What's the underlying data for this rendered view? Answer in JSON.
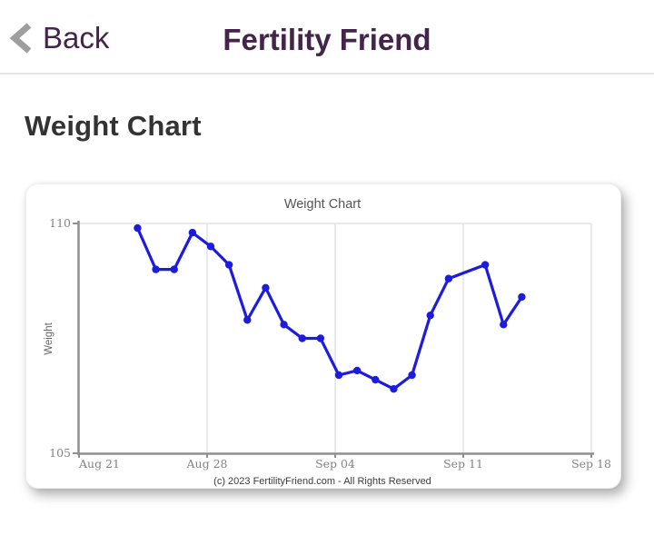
{
  "header": {
    "back_label": "Back",
    "title": "Fertility Friend"
  },
  "page": {
    "heading": "Weight Chart"
  },
  "colors": {
    "accent_purple": "#44254a",
    "chevron_gray": "#9e9e9e",
    "axis_gray": "#8f8f8f",
    "grid_gray": "#e2e2e2",
    "tick_text_gray": "#848484",
    "line_blue": "#1c1ce0"
  },
  "chart_data": {
    "type": "line",
    "title": "Weight Chart",
    "ylabel": "Weight",
    "xlabel": "",
    "ylim": [
      105,
      110
    ],
    "yticks": [
      110,
      105
    ],
    "xticks": [
      "Aug 21",
      "Aug 28",
      "Sep 04",
      "Sep 11",
      "Sep 18"
    ],
    "grid": "light vertical weekly gridlines plus top boundary line",
    "legend": "none",
    "line_color": "#1c1ce0",
    "footer": "(c) 2023 FertilityFriend.com - All Rights Reserved",
    "series": [
      {
        "name": "Weight",
        "points": [
          {
            "date": "Aug 24",
            "day": 3,
            "value": 109.9
          },
          {
            "date": "Aug 25",
            "day": 4,
            "value": 109.0
          },
          {
            "date": "Aug 26",
            "day": 5,
            "value": 109.0
          },
          {
            "date": "Aug 27",
            "day": 6,
            "value": 109.8
          },
          {
            "date": "Aug 28",
            "day": 7,
            "value": 109.5
          },
          {
            "date": "Aug 29",
            "day": 8,
            "value": 109.1
          },
          {
            "date": "Aug 30",
            "day": 9,
            "value": 107.9
          },
          {
            "date": "Aug 31",
            "day": 10,
            "value": 108.6
          },
          {
            "date": "Sep 01",
            "day": 11,
            "value": 107.8
          },
          {
            "date": "Sep 02",
            "day": 12,
            "value": 107.5
          },
          {
            "date": "Sep 03",
            "day": 13,
            "value": 107.5
          },
          {
            "date": "Sep 04",
            "day": 14,
            "value": 106.7
          },
          {
            "date": "Sep 05",
            "day": 15,
            "value": 106.8
          },
          {
            "date": "Sep 06",
            "day": 16,
            "value": 106.6
          },
          {
            "date": "Sep 07",
            "day": 17,
            "value": 106.4
          },
          {
            "date": "Sep 08",
            "day": 18,
            "value": 106.7
          },
          {
            "date": "Sep 09",
            "day": 19,
            "value": 108.0
          },
          {
            "date": "Sep 10",
            "day": 20,
            "value": 108.8
          },
          {
            "date": "Sep 12",
            "day": 22,
            "value": 109.1
          },
          {
            "date": "Sep 13",
            "day": 23,
            "value": 107.8
          },
          {
            "date": "Sep 14",
            "day": 24,
            "value": 108.4
          }
        ]
      }
    ]
  }
}
